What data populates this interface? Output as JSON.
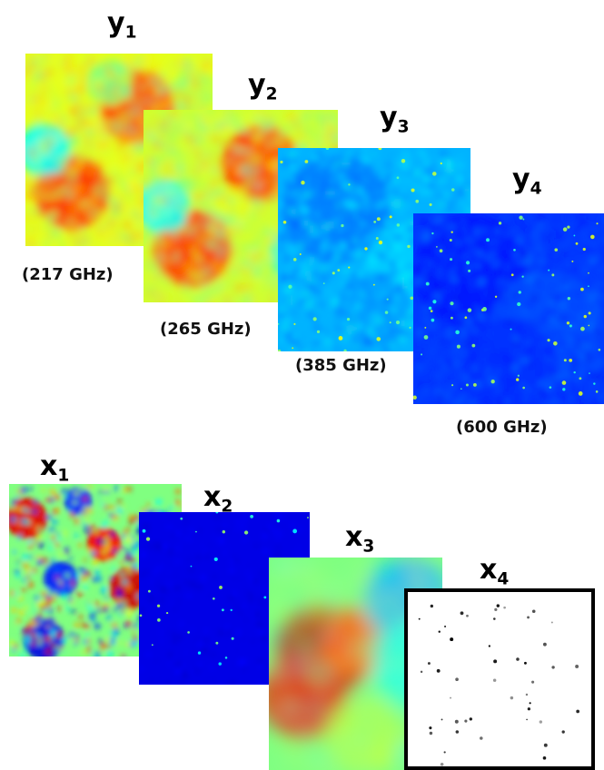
{
  "observations": [
    {
      "symbol": "y",
      "index": "1",
      "frequency": "(217 GHz)"
    },
    {
      "symbol": "y",
      "index": "2",
      "frequency": "(265 GHz)"
    },
    {
      "symbol": "y",
      "index": "3",
      "frequency": "(385 GHz)"
    },
    {
      "symbol": "y",
      "index": "4",
      "frequency": "(600 GHz)"
    }
  ],
  "components": [
    {
      "symbol": "x",
      "index": "1"
    },
    {
      "symbol": "x",
      "index": "2"
    },
    {
      "symbol": "x",
      "index": "3"
    },
    {
      "symbol": "x",
      "index": "4"
    }
  ],
  "colors": {
    "colormap": "jet",
    "background": "#ffffff",
    "x4_border": "#000000"
  }
}
